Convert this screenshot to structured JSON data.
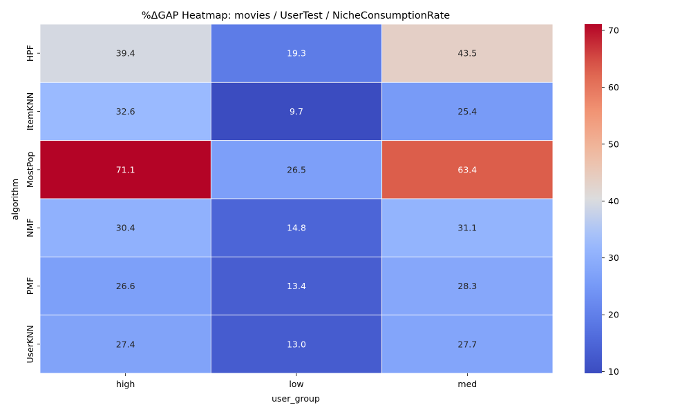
{
  "chart_data": {
    "type": "heatmap",
    "title": "%ΔGAP Heatmap: movies / UserTest / NicheConsumptionRate",
    "xlabel": "user_group",
    "ylabel": "algorithm",
    "x_categories": [
      "high",
      "low",
      "med"
    ],
    "y_categories": [
      "HPF",
      "ItemKNN",
      "MostPop",
      "NMF",
      "PMF",
      "UserKNN"
    ],
    "values": [
      [
        39.4,
        19.3,
        43.5
      ],
      [
        32.6,
        9.7,
        25.4
      ],
      [
        71.1,
        26.5,
        63.4
      ],
      [
        30.4,
        14.8,
        31.1
      ],
      [
        26.6,
        13.4,
        28.3
      ],
      [
        27.4,
        13.0,
        27.7
      ]
    ],
    "value_labels": [
      [
        "39.4",
        "19.3",
        "43.5"
      ],
      [
        "32.6",
        "9.7",
        "25.4"
      ],
      [
        "71.1",
        "26.5",
        "63.4"
      ],
      [
        "30.4",
        "14.8",
        "31.1"
      ],
      [
        "26.6",
        "13.4",
        "28.3"
      ],
      [
        "27.4",
        "13.0",
        "27.7"
      ]
    ],
    "colormap": "coolwarm",
    "vmin": 9.7,
    "vmax": 71.1,
    "colorbar_ticks": [
      10,
      20,
      30,
      40,
      50,
      60,
      70
    ],
    "colorbar_tick_labels": [
      "10",
      "20",
      "30",
      "40",
      "50",
      "60",
      "70"
    ],
    "legend": "colorbar-right",
    "grid": false
  }
}
